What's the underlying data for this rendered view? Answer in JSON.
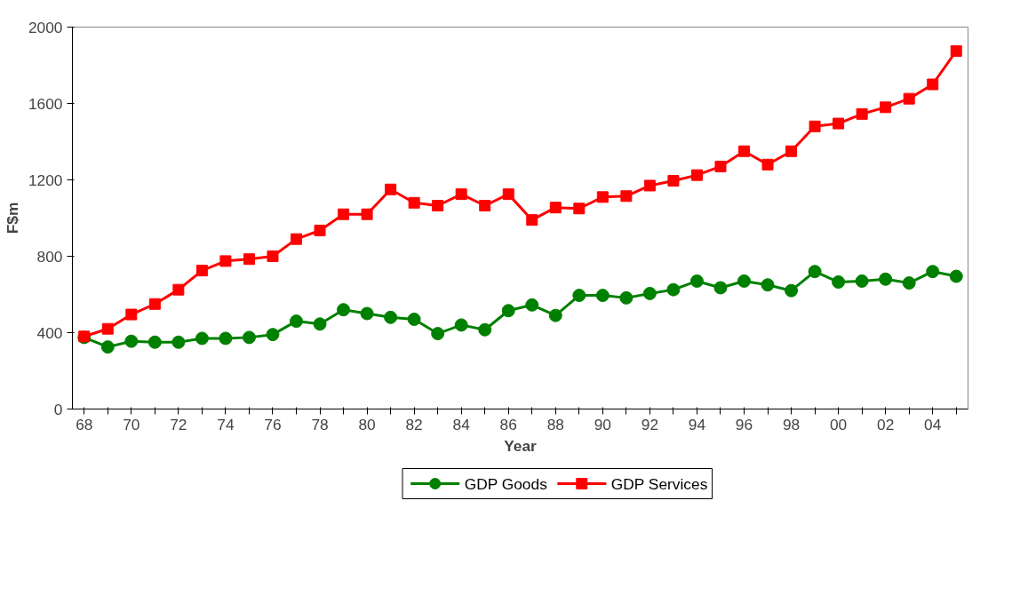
{
  "chart_data": {
    "type": "line",
    "xlabel": "Year",
    "ylabel": "F$m",
    "categories": [
      "68",
      null,
      "70",
      null,
      "72",
      null,
      "74",
      null,
      "76",
      null,
      "78",
      null,
      "80",
      null,
      "82",
      null,
      "84",
      null,
      "86",
      null,
      "88",
      null,
      "90",
      null,
      "92",
      null,
      "94",
      null,
      "96",
      null,
      "98",
      null,
      "00",
      null,
      "02",
      null,
      "04",
      null
    ],
    "series": [
      {
        "name": "GDP Goods",
        "color": "#008000",
        "marker": "circle",
        "values": [
          375,
          325,
          355,
          350,
          350,
          370,
          370,
          375,
          390,
          460,
          445,
          520,
          500,
          480,
          470,
          395,
          440,
          415,
          515,
          545,
          490,
          595,
          595,
          582,
          605,
          625,
          670,
          635,
          670,
          650,
          620,
          720,
          665,
          670,
          680,
          660,
          720,
          695
        ]
      },
      {
        "name": "GDP Services",
        "color": "#ff0000",
        "marker": "square",
        "values": [
          380,
          420,
          495,
          550,
          625,
          725,
          775,
          785,
          800,
          890,
          935,
          1020,
          1020,
          1150,
          1080,
          1065,
          1125,
          1065,
          1125,
          990,
          1055,
          1050,
          1110,
          1115,
          1170,
          1195,
          1225,
          1270,
          1350,
          1280,
          1350,
          1480,
          1495,
          1545,
          1580,
          1625,
          1700,
          1875
        ]
      }
    ],
    "ylim": [
      0,
      2000
    ],
    "yticks": [
      0,
      400,
      800,
      1200,
      1600,
      2000
    ],
    "grid": false,
    "legend": "bottom",
    "line_style": "solid"
  }
}
